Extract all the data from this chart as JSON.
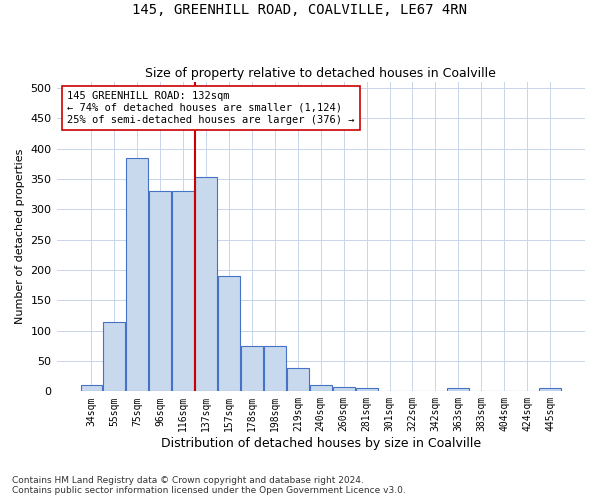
{
  "title_line1": "145, GREENHILL ROAD, COALVILLE, LE67 4RN",
  "title_line2": "Size of property relative to detached houses in Coalville",
  "xlabel": "Distribution of detached houses by size in Coalville",
  "ylabel": "Number of detached properties",
  "bar_labels": [
    "34sqm",
    "55sqm",
    "75sqm",
    "96sqm",
    "116sqm",
    "137sqm",
    "157sqm",
    "178sqm",
    "198sqm",
    "219sqm",
    "240sqm",
    "260sqm",
    "281sqm",
    "301sqm",
    "322sqm",
    "342sqm",
    "363sqm",
    "383sqm",
    "404sqm",
    "424sqm",
    "445sqm"
  ],
  "bar_values": [
    10,
    115,
    385,
    330,
    330,
    353,
    190,
    75,
    75,
    38,
    10,
    7,
    5,
    0,
    0,
    0,
    5,
    0,
    0,
    0,
    5
  ],
  "bar_color": "#c8d9ed",
  "bar_edge_color": "#4472c4",
  "vline_x_index": 5,
  "vline_color": "#cc0000",
  "annotation_text": "145 GREENHILL ROAD: 132sqm\n← 74% of detached houses are smaller (1,124)\n25% of semi-detached houses are larger (376) →",
  "annotation_box_color": "#ffffff",
  "annotation_box_edge": "#cc0000",
  "footnote": "Contains HM Land Registry data © Crown copyright and database right 2024.\nContains public sector information licensed under the Open Government Licence v3.0.",
  "ylim": [
    0,
    510
  ],
  "yticks": [
    0,
    50,
    100,
    150,
    200,
    250,
    300,
    350,
    400,
    450,
    500
  ],
  "background_color": "#ffffff",
  "grid_color": "#c8d4e8",
  "title1_fontsize": 10,
  "title2_fontsize": 9,
  "xlabel_fontsize": 9,
  "ylabel_fontsize": 8,
  "xtick_fontsize": 7,
  "ytick_fontsize": 8,
  "footnote_fontsize": 6.5
}
